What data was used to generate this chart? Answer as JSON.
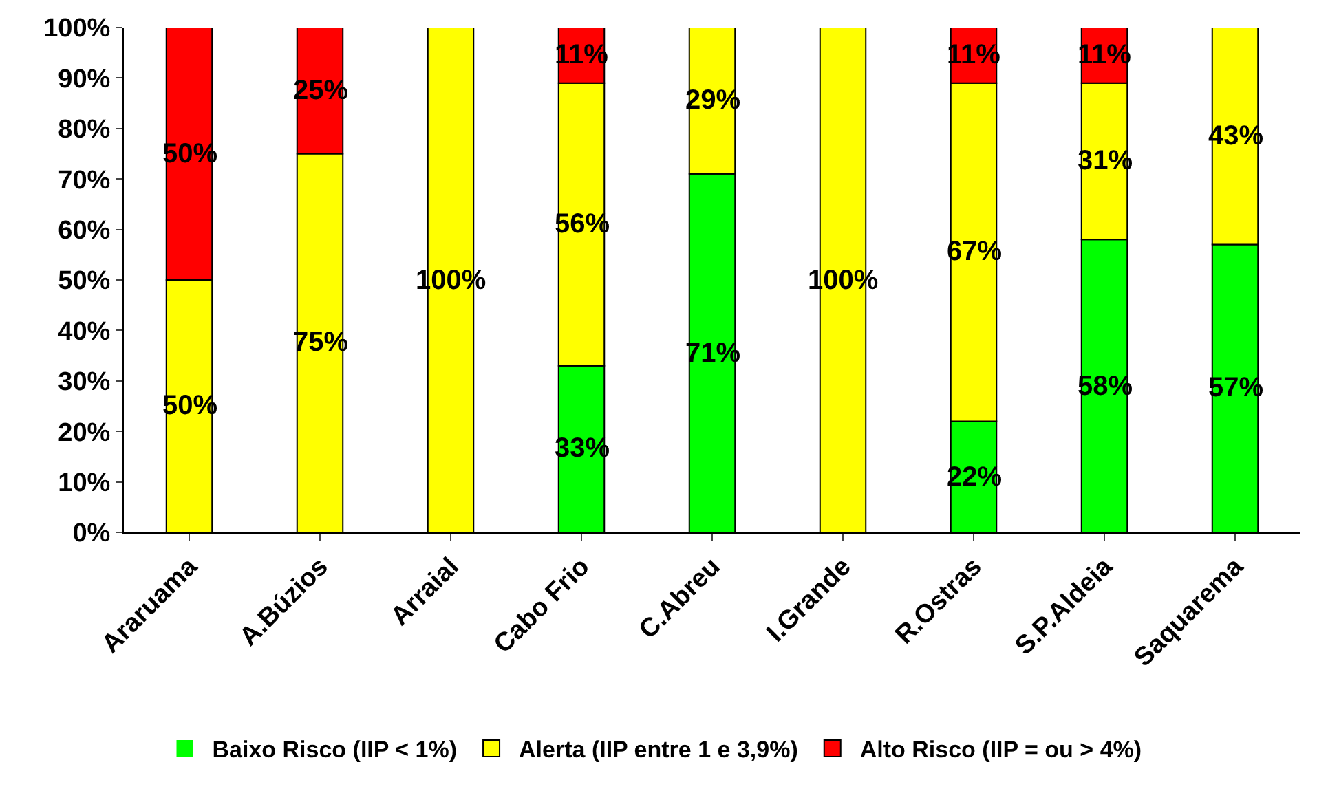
{
  "chart_data": {
    "type": "bar",
    "stacked": true,
    "categories": [
      "Araruama",
      "A.Búzios",
      "Arraial",
      "Cabo Frio",
      "C.Abreu",
      "I.Grande",
      "R.Ostras",
      "S.P.Aldeia",
      "Saquarema"
    ],
    "series": [
      {
        "name": "Baixo Risco (IIP < 1%)",
        "color": "#00ff00",
        "values": [
          0,
          0,
          0,
          33,
          71,
          0,
          22,
          58,
          57
        ],
        "value_labels": [
          null,
          null,
          null,
          "33%",
          "71%",
          null,
          "22%",
          "58%",
          "57%"
        ]
      },
      {
        "name": "Alerta (IIP entre 1 e 3,9%)",
        "color": "#ffff00",
        "values": [
          50,
          75,
          100,
          56,
          29,
          100,
          67,
          31,
          43
        ],
        "value_labels": [
          "50%",
          "75%",
          "100%",
          "56%",
          "29%",
          "100%",
          "67%",
          "31%",
          "43%"
        ]
      },
      {
        "name": "Alto Risco (IIP = ou > 4%)",
        "color": "#ff0000",
        "values": [
          50,
          25,
          0,
          11,
          0,
          0,
          11,
          11,
          0
        ],
        "value_labels": [
          "50%",
          "25%",
          null,
          "11%",
          null,
          null,
          "11%",
          "11%",
          null
        ]
      }
    ],
    "ylim": [
      0,
      100
    ],
    "yticks": [
      {
        "value": 0,
        "label": "0%"
      },
      {
        "value": 10,
        "label": "10%"
      },
      {
        "value": 20,
        "label": "20%"
      },
      {
        "value": 30,
        "label": "30%"
      },
      {
        "value": 40,
        "label": "40%"
      },
      {
        "value": 50,
        "label": "50%"
      },
      {
        "value": 60,
        "label": "60%"
      },
      {
        "value": 70,
        "label": "70%"
      },
      {
        "value": 80,
        "label": "80%"
      },
      {
        "value": 90,
        "label": "90%"
      },
      {
        "value": 100,
        "label": "100%"
      }
    ],
    "legend": "bottom"
  }
}
